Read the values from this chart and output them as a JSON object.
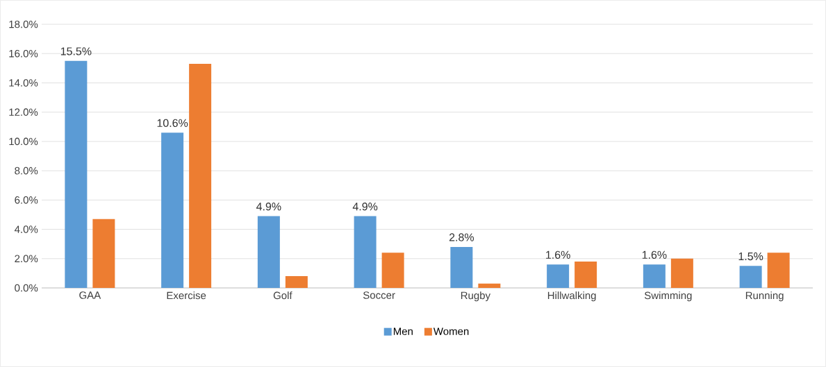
{
  "chart_data": {
    "type": "bar",
    "categories": [
      "GAA",
      "Exercise",
      "Golf",
      "Soccer",
      "Rugby",
      "Hillwalking",
      "Swimming",
      "Running"
    ],
    "series": [
      {
        "name": "Men",
        "color": "#5b9bd5",
        "values": [
          15.5,
          10.6,
          4.9,
          4.9,
          2.8,
          1.6,
          1.6,
          1.5
        ],
        "value_labels": [
          "15.5%",
          "10.6%",
          "4.9%",
          "4.9%",
          "2.8%",
          "1.6%",
          "1.6%",
          "1.5%"
        ]
      },
      {
        "name": "Women",
        "color": "#ed7d31",
        "values": [
          4.7,
          15.3,
          0.8,
          2.4,
          0.3,
          1.8,
          2.0,
          2.4
        ]
      }
    ],
    "ylim": [
      0,
      18
    ],
    "yticks": [
      {
        "value": 0,
        "label": "0.0%"
      },
      {
        "value": 2,
        "label": "2.0%"
      },
      {
        "value": 4,
        "label": "4.0%"
      },
      {
        "value": 6,
        "label": "6.0%"
      },
      {
        "value": 8,
        "label": "8.0%"
      },
      {
        "value": 10,
        "label": "10.0%"
      },
      {
        "value": 12,
        "label": "12.0%"
      },
      {
        "value": 14,
        "label": "14.0%"
      },
      {
        "value": 16,
        "label": "16.0%"
      },
      {
        "value": 18,
        "label": "18.0%"
      }
    ],
    "grid": "y",
    "legend": "bottom"
  }
}
